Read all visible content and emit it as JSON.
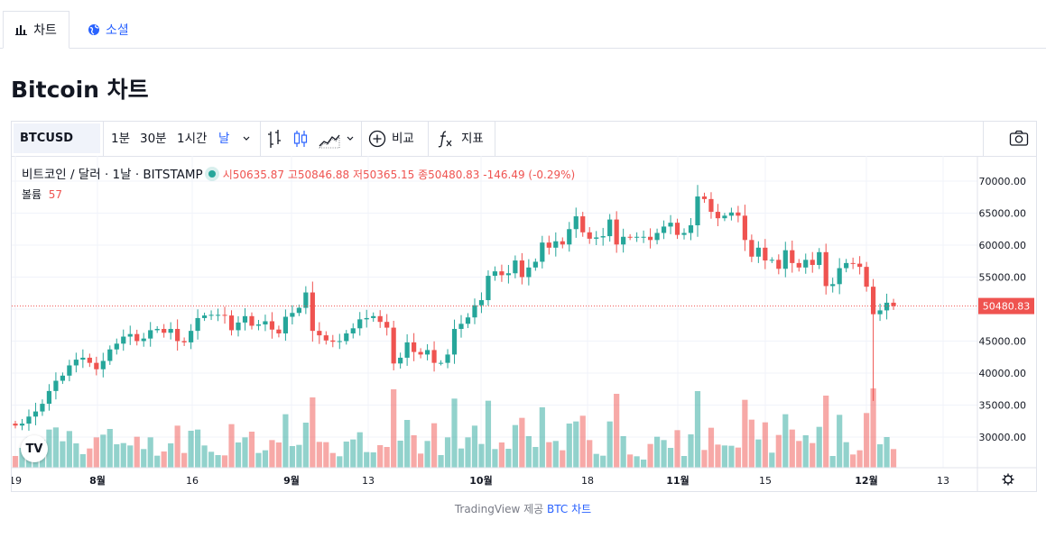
{
  "tabs": [
    {
      "label": "차트",
      "icon": "bar-chart-icon"
    },
    {
      "label": "소셜",
      "icon": "globe-icon"
    }
  ],
  "page_title": "Bitcoin 차트",
  "toolbar": {
    "symbol": "BTCUSD",
    "intervals": [
      "1분",
      "30분",
      "1시간",
      "날"
    ],
    "active_interval": "날",
    "compare_label": "비교",
    "indicators_label": "지표",
    "icons": [
      "chevron-down-icon",
      "bars-style-icon",
      "candles-style-icon",
      "area-style-icon",
      "chevron-down-icon",
      "plus-circle-icon",
      "fx-icon",
      "camera-icon"
    ]
  },
  "legend": {
    "name": "비트코인 / 달러 · 1날 · BITSTAMP",
    "open_label": "시",
    "open": "50635.87",
    "high_label": "고",
    "high": "50846.88",
    "low_label": "저",
    "low": "50365.15",
    "close_label": "종",
    "close": "50480.83",
    "change": "-146.49 (-0.29%)",
    "volume_label": "볼륨",
    "volume": "57"
  },
  "colors": {
    "up": "#26a69a",
    "down": "#ef5350",
    "accent": "#2962ff"
  },
  "footer": {
    "prefix": "TradingView 제공 ",
    "link": "BTC 차트"
  },
  "chart_data": {
    "type": "candlestick",
    "price_axis_ticks": [
      "70000.00",
      "65000.00",
      "60000.00",
      "55000.00",
      "50000.00",
      "45000.00",
      "40000.00",
      "35000.00",
      "30000.00"
    ],
    "last_price_label": "50480.83",
    "time_axis_labels": [
      "19",
      "8월",
      "16",
      "9월",
      "13",
      "10월",
      "18",
      "11월",
      "15",
      "12월",
      "13"
    ],
    "y_range": [
      25000,
      72000
    ],
    "close": [
      31800,
      32100,
      33200,
      34000,
      35200,
      37200,
      38800,
      39600,
      41200,
      42100,
      42400,
      41600,
      40600,
      41900,
      43700,
      44600,
      45700,
      46100,
      45000,
      45400,
      46700,
      46900,
      46300,
      46900,
      45000,
      44800,
      46600,
      48600,
      49000,
      49100,
      49100,
      49000,
      46700,
      47900,
      48900,
      47400,
      47600,
      48100,
      46800,
      46200,
      48800,
      49400,
      50200,
      52600,
      46600,
      45900,
      45100,
      44900,
      45000,
      46200,
      47000,
      48400,
      48600,
      48900,
      48000,
      47100,
      41500,
      42400,
      44800,
      43300,
      42900,
      43600,
      41600,
      41600,
      42900,
      46900,
      47700,
      48700,
      50600,
      51400,
      55200,
      55900,
      55300,
      55600,
      57600,
      55000,
      56500,
      57400,
      60400,
      59600,
      60600,
      60100,
      62500,
      64500,
      62000,
      61000,
      61200,
      61400,
      64000,
      60100,
      61300,
      61200,
      61300,
      61300,
      60800,
      61900,
      62900,
      63500,
      61600,
      61900,
      63100,
      67600,
      67200,
      65200,
      64200,
      64600,
      65100,
      64600,
      60800,
      58200,
      59600,
      57600,
      57700,
      56300,
      59200,
      57200,
      56500,
      57700,
      56900,
      58900,
      53600,
      53900,
      56400,
      57200,
      57100,
      56600,
      53500,
      49200,
      49800,
      51000,
      50480
    ]
  }
}
